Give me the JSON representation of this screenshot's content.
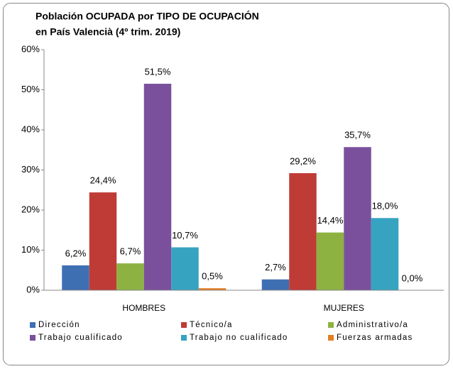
{
  "chart_data": {
    "type": "bar",
    "title": [
      "Población OCUPADA por TIPO DE OCUPACIÓN",
      "en País Valencià (4º trim. 2019)"
    ],
    "categories": [
      "HOMBRES",
      "MUJERES"
    ],
    "series": [
      {
        "name": "Dirección",
        "color": "#3f6fb3",
        "values": [
          6.2,
          2.7
        ],
        "value_labels": [
          "6,2%",
          "2,7%"
        ]
      },
      {
        "name": "Técnico/a",
        "color": "#bf3b36",
        "values": [
          24.4,
          29.2
        ],
        "value_labels": [
          "24,4%",
          "29,2%"
        ]
      },
      {
        "name": "Administrativo/a",
        "color": "#8db242",
        "values": [
          6.7,
          14.4
        ],
        "value_labels": [
          "6,7%",
          "14,4%"
        ]
      },
      {
        "name": "Trabajo cualificado",
        "color": "#7a509c",
        "values": [
          51.5,
          35.7
        ],
        "value_labels": [
          "51,5%",
          "35,7%"
        ]
      },
      {
        "name": "Trabajo no cualificado",
        "color": "#36a3c1",
        "values": [
          10.7,
          18.0
        ],
        "value_labels": [
          "10,7%",
          "18,0%"
        ]
      },
      {
        "name": "Fuerzas armadas",
        "color": "#e47d25",
        "values": [
          0.5,
          0.0
        ],
        "value_labels": [
          "0,5%",
          "0,0%"
        ]
      }
    ],
    "ylim": [
      0,
      60
    ],
    "yticks": [
      {
        "value": 0,
        "label": "0%"
      },
      {
        "value": 10,
        "label": "10%"
      },
      {
        "value": 20,
        "label": "20%"
      },
      {
        "value": 30,
        "label": "30%"
      },
      {
        "value": 40,
        "label": "40%"
      },
      {
        "value": 50,
        "label": "50%"
      },
      {
        "value": 60,
        "label": "60%"
      }
    ],
    "legend": "bottom"
  }
}
